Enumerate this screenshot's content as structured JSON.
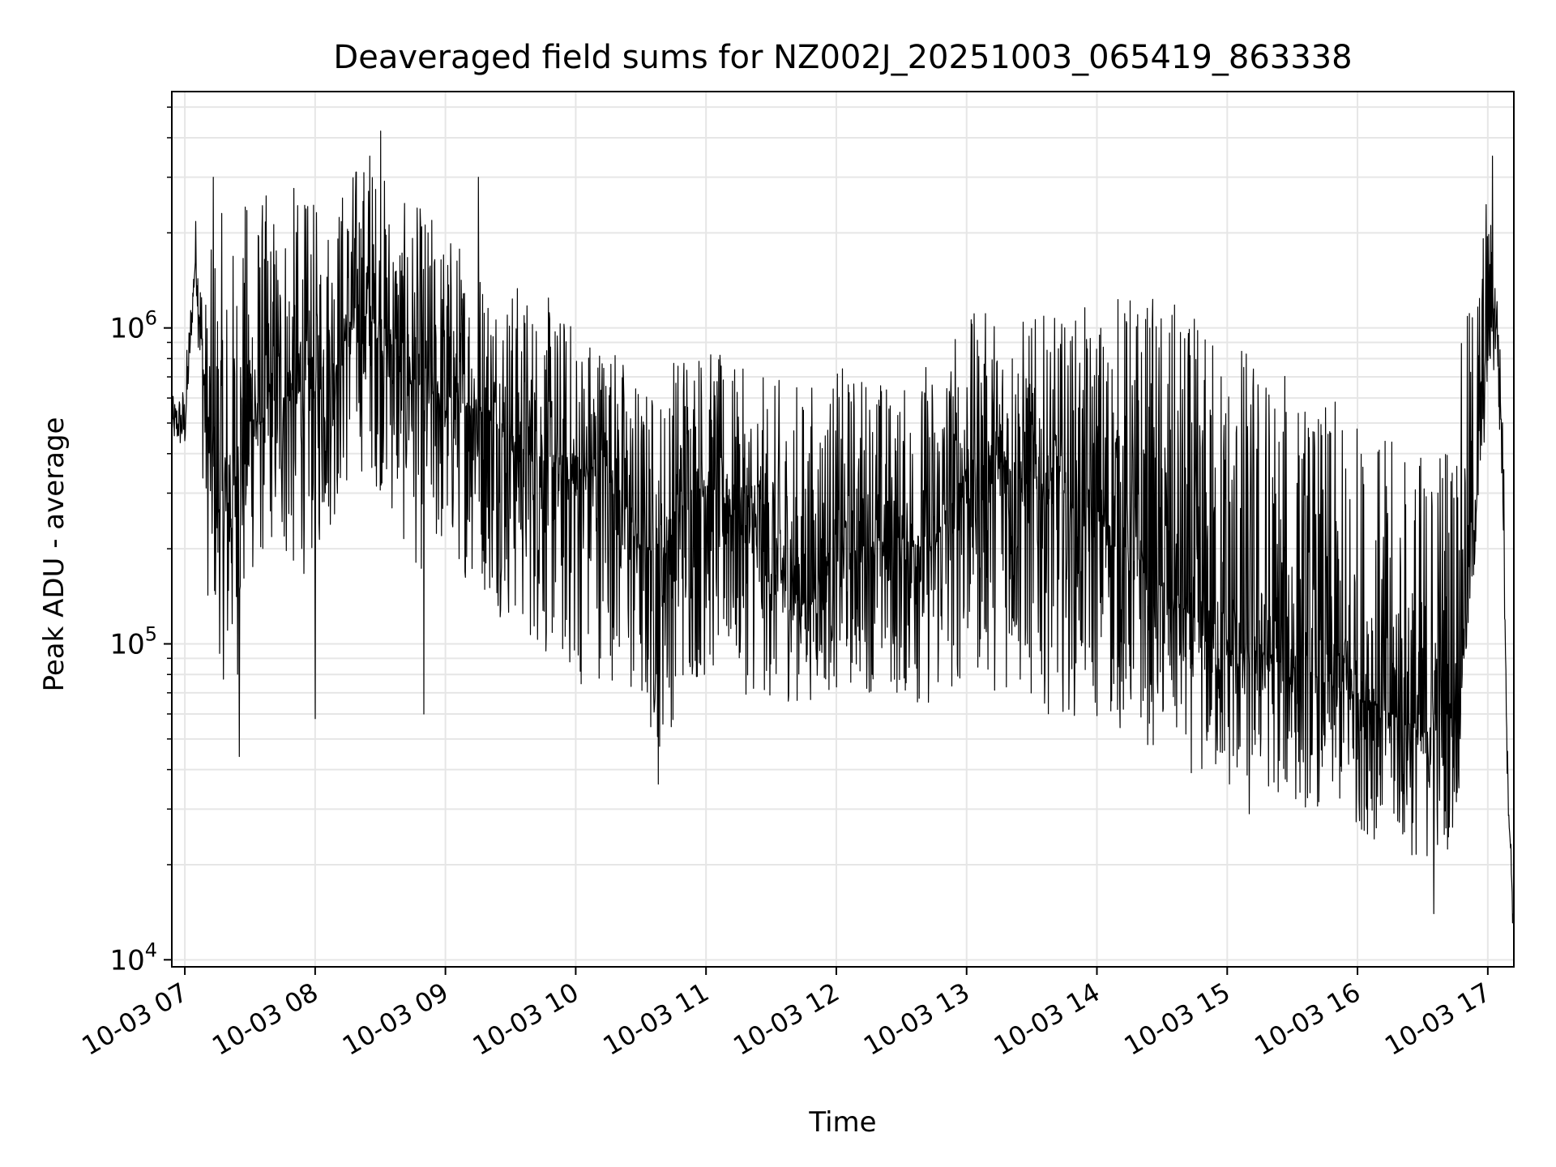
{
  "chart_data": {
    "type": "line",
    "title": "Deaveraged field sums for NZ002J_20251003_065419_863338",
    "xlabel": "Time",
    "ylabel": "Peak ADU - average",
    "yscale": "log",
    "ylim": [
      9500,
      5600000
    ],
    "xlim": [
      "2025-10-03 06:54",
      "2025-10-03 17:12"
    ],
    "grid": true,
    "line_color": "#000000",
    "grid_color": "#e6e6e6",
    "x_ticks": [
      "10-03 07",
      "10-03 08",
      "10-03 09",
      "10-03 10",
      "10-03 11",
      "10-03 12",
      "10-03 13",
      "10-03 14",
      "10-03 15",
      "10-03 16",
      "10-03 17"
    ],
    "y_ticks": [
      {
        "value": 10000,
        "base": "10",
        "exp": "4"
      },
      {
        "value": 100000,
        "base": "10",
        "exp": "5"
      },
      {
        "value": 1000000,
        "base": "10",
        "exp": "6"
      }
    ],
    "series": [
      {
        "envelope": {
          "x": [
            "06:54",
            "07:00",
            "07:05",
            "07:10",
            "07:15",
            "07:20",
            "07:25",
            "07:30",
            "07:40",
            "07:50",
            "08:00",
            "08:10",
            "08:20",
            "08:30",
            "08:40",
            "08:50",
            "09:00",
            "09:15",
            "09:30",
            "09:45",
            "10:00",
            "10:15",
            "10:30",
            "10:40",
            "10:50",
            "11:00",
            "11:15",
            "11:30",
            "11:45",
            "12:00",
            "12:15",
            "12:30",
            "12:45",
            "13:00",
            "13:15",
            "13:30",
            "13:45",
            "14:00",
            "14:15",
            "14:30",
            "14:45",
            "15:00",
            "15:15",
            "15:30",
            "15:45",
            "16:00",
            "16:15",
            "16:30",
            "16:45",
            "16:55",
            "17:00",
            "17:04",
            "17:07",
            "17:09",
            "17:12"
          ],
          "center": [
            500000,
            480000,
            1700000,
            500000,
            280000,
            260000,
            380000,
            500000,
            580000,
            620000,
            650000,
            800000,
            1200000,
            1000000,
            750000,
            650000,
            600000,
            550000,
            450000,
            380000,
            320000,
            380000,
            210000,
            180000,
            290000,
            320000,
            260000,
            170000,
            150000,
            190000,
            210000,
            210000,
            200000,
            360000,
            360000,
            330000,
            300000,
            260000,
            200000,
            150000,
            120000,
            95000,
            95000,
            85000,
            75000,
            70000,
            60000,
            52000,
            65000,
            300000,
            1000000,
            1150000,
            380000,
            40000,
            12000
          ],
          "low": [
            420000,
            400000,
            1500000,
            140000,
            100000,
            60000,
            80000,
            150000,
            200000,
            150000,
            180000,
            250000,
            350000,
            300000,
            200000,
            160000,
            180000,
            150000,
            110000,
            90000,
            70000,
            80000,
            50000,
            45000,
            70000,
            75000,
            70000,
            65000,
            65000,
            70000,
            70000,
            65000,
            60000,
            75000,
            70000,
            60000,
            60000,
            55000,
            50000,
            45000,
            38000,
            32000,
            35000,
            30000,
            30000,
            26000,
            22000,
            20000,
            23000,
            200000,
            600000,
            700000,
            200000,
            35000,
            10000
          ],
          "high": [
            600000,
            700000,
            2300000,
            1300000,
            2800000,
            1800000,
            2400000,
            2900000,
            2700000,
            2900000,
            2500000,
            2800000,
            3700000,
            3400000,
            2500000,
            2500000,
            2200000,
            1800000,
            1500000,
            1300000,
            1100000,
            1000000,
            700000,
            700000,
            1100000,
            900000,
            750000,
            700000,
            700000,
            750000,
            800000,
            650000,
            900000,
            1100000,
            1200000,
            1100000,
            1100000,
            1200000,
            1400000,
            1300000,
            1100000,
            1100000,
            900000,
            700000,
            600000,
            550000,
            450000,
            450000,
            700000,
            1800000,
            3000000,
            1500000,
            600000,
            50000,
            14000
          ]
        },
        "extremes": [
          {
            "x": "07:13",
            "y": 3000000
          },
          {
            "x": "07:25",
            "y": 44000
          },
          {
            "x": "08:00",
            "y": 58000
          },
          {
            "x": "08:30",
            "y": 4200000
          },
          {
            "x": "08:25",
            "y": 3500000
          },
          {
            "x": "08:50",
            "y": 60000
          },
          {
            "x": "09:15",
            "y": 3000000
          },
          {
            "x": "10:38",
            "y": 36000
          },
          {
            "x": "15:10",
            "y": 29000
          },
          {
            "x": "16:35",
            "y": 14000
          },
          {
            "x": "17:02",
            "y": 3500000
          }
        ]
      }
    ]
  }
}
